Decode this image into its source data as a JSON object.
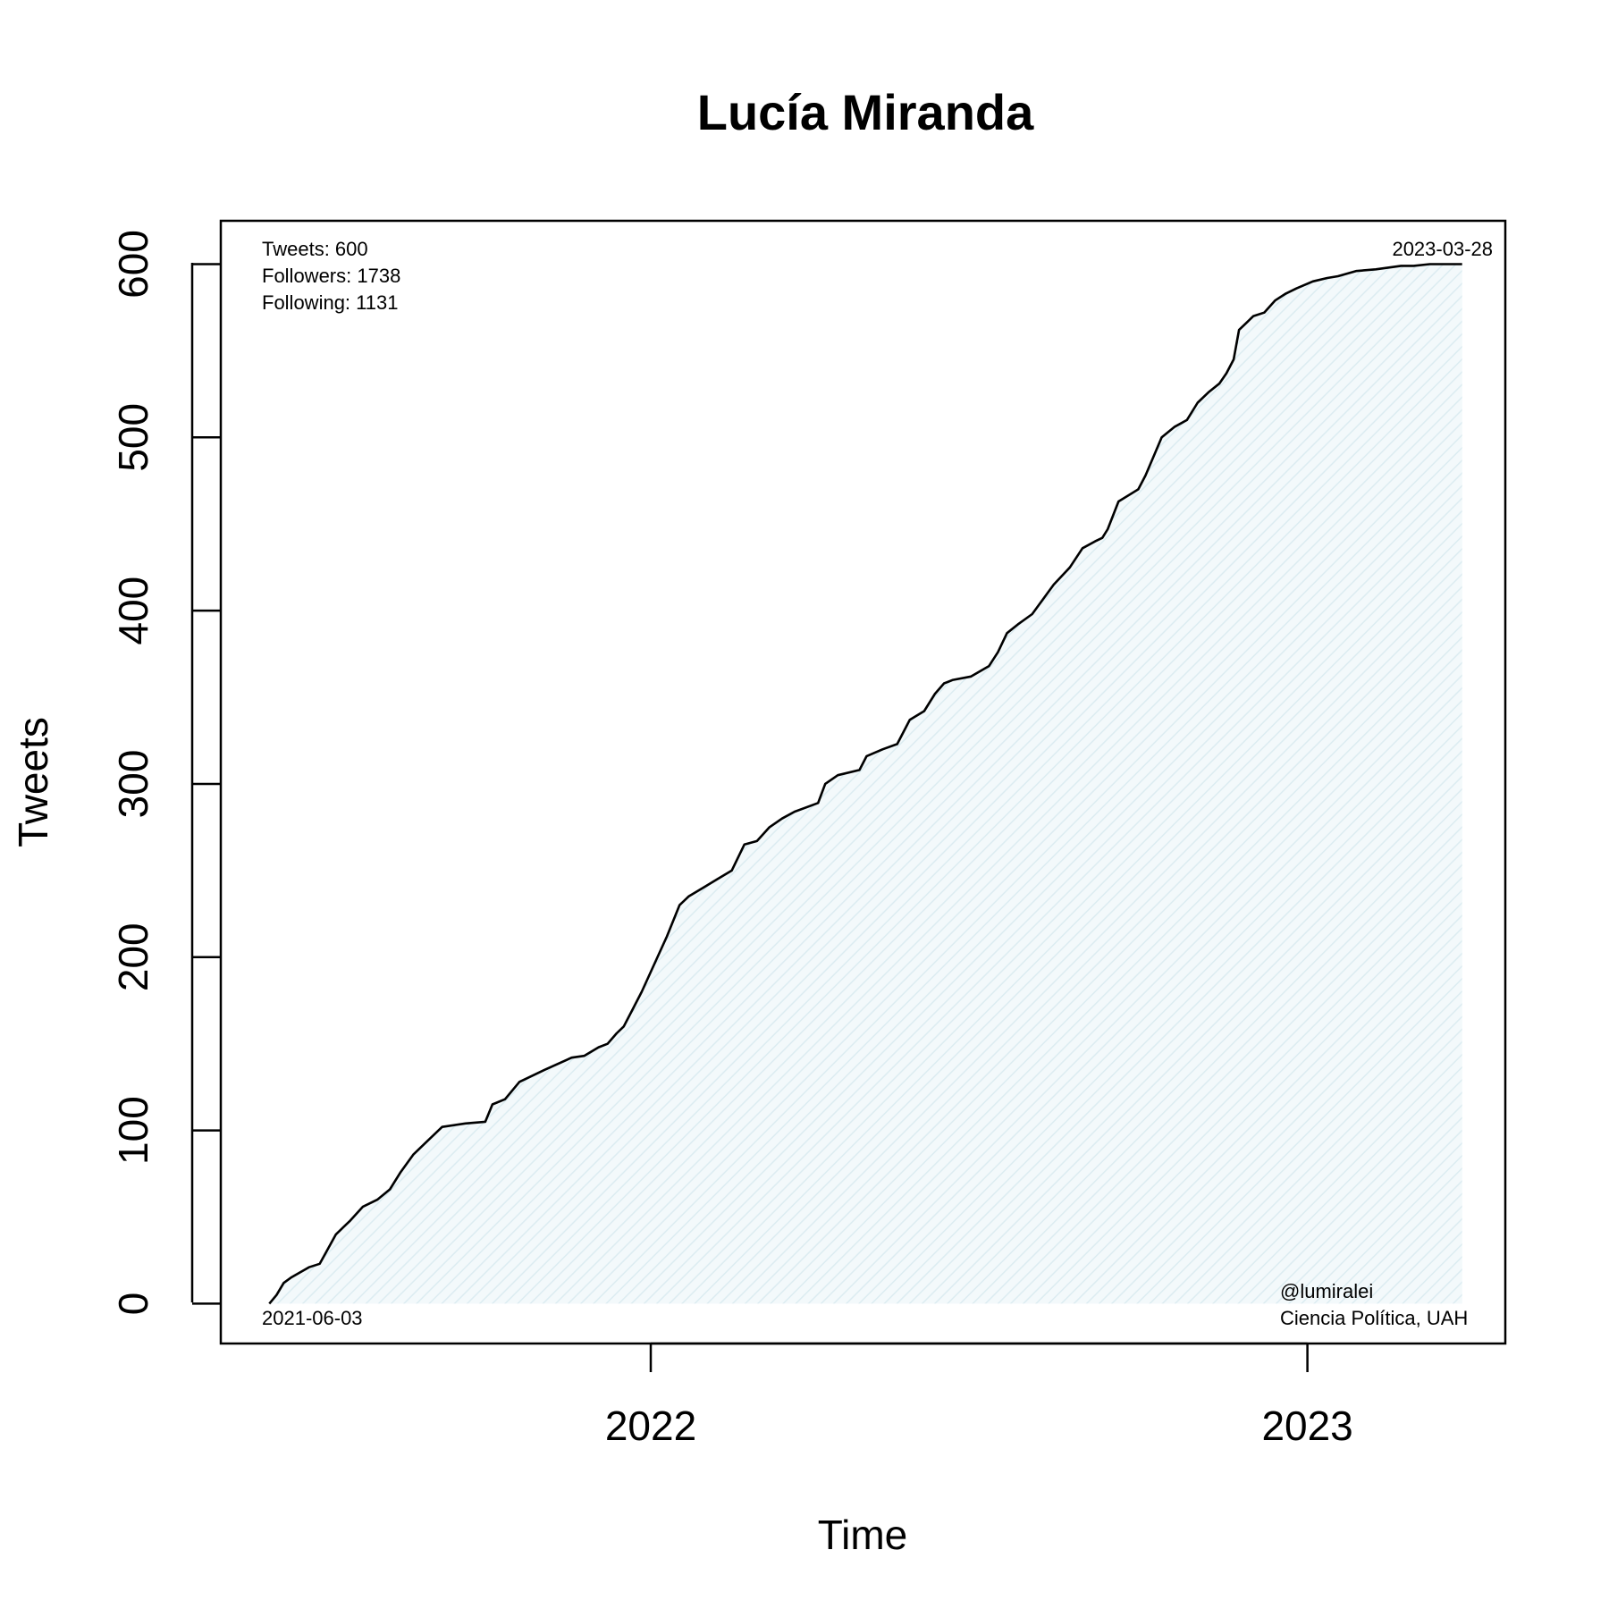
{
  "chart_data": {
    "type": "area",
    "title": "Lucía Miranda",
    "xlabel": "Time",
    "ylabel": "Tweets",
    "xlim": [
      "2021-05-07",
      "2023-04-21"
    ],
    "ylim": [
      -23,
      625
    ],
    "x_ticks": [
      {
        "date": "2022-01-01",
        "label": "2022"
      },
      {
        "date": "2023-01-01",
        "label": "2023"
      }
    ],
    "y_ticks": [
      0,
      100,
      200,
      300,
      400,
      500,
      600
    ],
    "fill_color": "#e6f2f5",
    "line_color": "#000000",
    "annotations": {
      "tweets": "Tweets: 600",
      "followers": "Followers: 1738",
      "following": "Following: 1131",
      "start_date": "2021-06-03",
      "end_date": "2023-03-28",
      "handle": "@lumiralei",
      "affiliation": "Ciencia Política, UAH"
    },
    "series": [
      {
        "x": [
          "2021-06-03",
          "2021-06-07",
          "2021-06-11",
          "2021-06-15",
          "2021-06-25",
          "2021-07-01",
          "2021-07-10",
          "2021-07-14",
          "2021-07-18",
          "2021-07-25",
          "2021-08-02",
          "2021-08-09",
          "2021-08-15",
          "2021-08-22",
          "2021-08-30",
          "2021-09-07",
          "2021-09-20",
          "2021-10-01",
          "2021-10-05",
          "2021-10-12",
          "2021-10-20",
          "2021-11-03",
          "2021-11-18",
          "2021-11-25",
          "2021-12-03",
          "2021-12-08",
          "2021-12-13",
          "2021-12-17",
          "2021-12-22",
          "2021-12-27",
          "2022-01-03",
          "2022-01-10",
          "2022-01-17",
          "2022-01-22",
          "2022-01-30",
          "2022-02-07",
          "2022-02-15",
          "2022-02-22",
          "2022-03-01",
          "2022-03-08",
          "2022-03-15",
          "2022-03-22",
          "2022-04-04",
          "2022-04-08",
          "2022-04-15",
          "2022-04-27",
          "2022-05-01",
          "2022-05-10",
          "2022-05-18",
          "2022-05-25",
          "2022-06-02",
          "2022-06-08",
          "2022-06-13",
          "2022-06-18",
          "2022-06-28",
          "2022-07-08",
          "2022-07-13",
          "2022-07-18",
          "2022-07-24",
          "2022-08-01",
          "2022-08-13",
          "2022-08-22",
          "2022-08-29",
          "2022-09-05",
          "2022-09-09",
          "2022-09-12",
          "2022-09-18",
          "2022-09-29",
          "2022-10-03",
          "2022-10-12",
          "2022-10-19",
          "2022-10-26",
          "2022-11-01",
          "2022-11-07",
          "2022-11-13",
          "2022-11-17",
          "2022-11-21",
          "2022-11-24",
          "2022-12-02",
          "2022-12-08",
          "2022-12-14",
          "2022-12-20",
          "2022-12-26",
          "2023-01-04",
          "2023-01-12",
          "2023-01-18",
          "2023-01-28",
          "2023-02-08",
          "2023-02-22",
          "2023-03-01",
          "2023-03-10",
          "2023-03-18",
          "2023-03-28"
        ],
        "values": [
          0,
          5,
          12,
          15,
          21,
          23,
          40,
          44,
          48,
          56,
          60,
          66,
          76,
          86,
          94,
          102,
          104,
          105,
          115,
          118,
          128,
          135,
          142,
          143,
          148,
          150,
          156,
          160,
          170,
          180,
          196,
          212,
          230,
          235,
          240,
          245,
          250,
          265,
          267,
          275,
          280,
          284,
          289,
          300,
          305,
          308,
          316,
          320,
          323,
          337,
          342,
          352,
          358,
          360,
          362,
          368,
          376,
          387,
          392,
          398,
          415,
          425,
          436,
          440,
          442,
          447,
          463,
          470,
          478,
          500,
          506,
          510,
          520,
          526,
          531,
          537,
          545,
          562,
          570,
          572,
          579,
          583,
          586,
          590,
          592,
          593,
          596,
          597,
          599,
          599,
          600,
          600,
          600
        ]
      }
    ]
  }
}
